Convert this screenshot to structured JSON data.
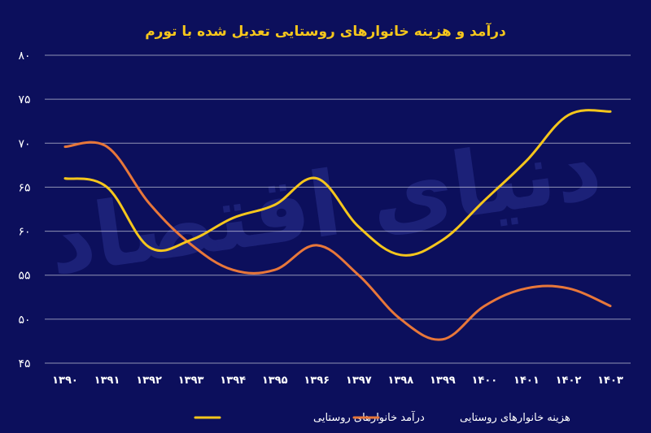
{
  "chart_data": {
    "type": "line",
    "title": "درآمد و هزینه خانوارهای روستایی تعدیل شده با تورم",
    "watermark": "دنیای اقتصاد",
    "categories": [
      "۱۳۹۰",
      "۱۳۹۱",
      "۱۳۹۲",
      "۱۳۹۳",
      "۱۳۹۴",
      "۱۳۹۵",
      "۱۳۹۶",
      "۱۳۹۷",
      "۱۳۹۸",
      "۱۳۹۹",
      "۱۴۰۰",
      "۱۴۰۱",
      "۱۴۰۲",
      "۱۴۰۳"
    ],
    "y_ticks": [
      80,
      75,
      70,
      65,
      60,
      55,
      50,
      45
    ],
    "y_tick_labels": [
      "۸۰",
      "۷۵",
      "۷۰",
      "۶۵",
      "۶۰",
      "۵۵",
      "۵۰",
      "۴۵"
    ],
    "ylim": [
      45,
      80
    ],
    "grid": true,
    "legend_position": "bottom",
    "series": [
      {
        "name": "درآمد خانوارهای روستایی",
        "color": "#f5c61c",
        "values": [
          66.0,
          65.0,
          58.2,
          59.0,
          61.5,
          63.0,
          66.0,
          60.5,
          57.3,
          59.0,
          63.5,
          68.0,
          73.2,
          73.6
        ]
      },
      {
        "name": "هزینه خانوارهای روستایی",
        "color": "#e8773a",
        "values": [
          69.6,
          69.6,
          63.2,
          58.5,
          55.6,
          55.6,
          58.4,
          55.0,
          50.0,
          47.7,
          51.5,
          53.5,
          53.5,
          51.5
        ]
      }
    ]
  }
}
